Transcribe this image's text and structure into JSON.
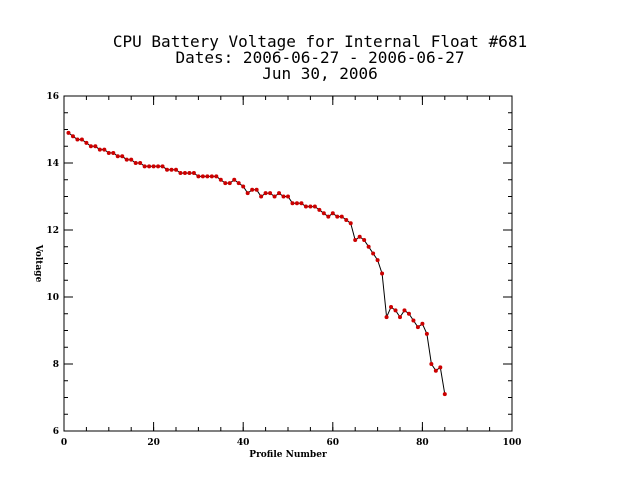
{
  "chart_data": {
    "type": "line",
    "title_lines": [
      "CPU Battery Voltage for Internal Float #681",
      "Dates:  2006-06-27 -  2006-06-27",
      "Jun 30, 2006"
    ],
    "xlabel": "Profile Number",
    "ylabel": "Voltage",
    "xlim": [
      0,
      100
    ],
    "ylim": [
      6,
      16
    ],
    "xticks": [
      0,
      20,
      40,
      60,
      80,
      100
    ],
    "yticks": [
      6,
      8,
      10,
      12,
      14,
      16
    ],
    "x_minor_step": 5,
    "y_minor_step": 0.5,
    "line_color": "#000000",
    "marker_color": "#cc0000",
    "grid": false,
    "series": [
      {
        "x": [
          1,
          2,
          3,
          4,
          5,
          6,
          7,
          8,
          9,
          10,
          11,
          12,
          13,
          14,
          15,
          16,
          17,
          18,
          19,
          20,
          21,
          22,
          23,
          24,
          25,
          26,
          27,
          28,
          29,
          30,
          31,
          32,
          33,
          34,
          35,
          36,
          37,
          38,
          39,
          40,
          41,
          42,
          43,
          44,
          45,
          46,
          47,
          48,
          49,
          50,
          51,
          52,
          53,
          54,
          55,
          56,
          57,
          58,
          59,
          60,
          61,
          62,
          63,
          64,
          65,
          66,
          67,
          68,
          69,
          70,
          71,
          72,
          73,
          74,
          75,
          76,
          77,
          78,
          79,
          80,
          81,
          82,
          83,
          84,
          85
        ],
        "y": [
          14.9,
          14.8,
          14.7,
          14.7,
          14.6,
          14.5,
          14.5,
          14.4,
          14.4,
          14.3,
          14.3,
          14.2,
          14.2,
          14.1,
          14.1,
          14.0,
          14.0,
          13.9,
          13.9,
          13.9,
          13.9,
          13.9,
          13.8,
          13.8,
          13.8,
          13.7,
          13.7,
          13.7,
          13.7,
          13.6,
          13.6,
          13.6,
          13.6,
          13.6,
          13.5,
          13.4,
          13.4,
          13.5,
          13.4,
          13.3,
          13.1,
          13.2,
          13.2,
          13.0,
          13.1,
          13.1,
          13.0,
          13.1,
          13.0,
          13.0,
          12.8,
          12.8,
          12.8,
          12.7,
          12.7,
          12.7,
          12.6,
          12.5,
          12.4,
          12.5,
          12.4,
          12.4,
          12.3,
          12.2,
          11.7,
          11.8,
          11.7,
          11.5,
          11.3,
          11.1,
          10.7,
          9.4,
          9.7,
          9.6,
          9.4,
          9.6,
          9.5,
          9.3,
          9.1,
          9.2,
          8.9,
          8.0,
          7.8,
          7.9,
          7.1
        ]
      }
    ]
  }
}
